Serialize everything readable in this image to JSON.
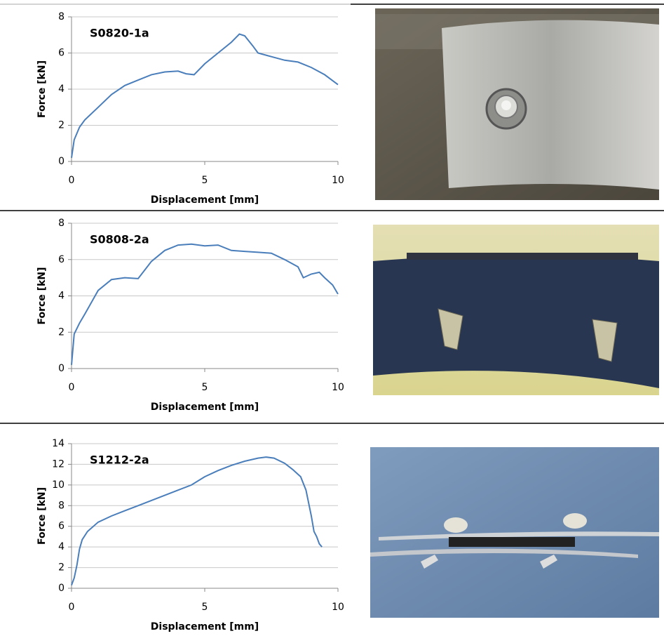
{
  "chart_data": [
    {
      "type": "line",
      "title": "S0820-1a",
      "x_label": "Displacement [mm]",
      "y_label": "Force [kN]",
      "x": [
        0,
        0.1,
        0.3,
        0.5,
        1,
        1.5,
        2,
        2.5,
        3,
        3.5,
        4,
        4.3,
        4.6,
        5,
        5.5,
        6,
        6.3,
        6.5,
        6.8,
        7,
        7.5,
        8,
        8.5,
        9,
        9.5,
        10
      ],
      "values": [
        0.2,
        1.2,
        1.9,
        2.3,
        3.0,
        3.7,
        4.2,
        4.5,
        4.8,
        4.95,
        5.0,
        4.85,
        4.8,
        5.4,
        6.0,
        6.6,
        7.05,
        6.95,
        6.4,
        6.0,
        5.8,
        5.6,
        5.5,
        5.2,
        4.8,
        4.25
      ],
      "color": "#4a7ebb",
      "xlim": [
        0,
        10
      ],
      "ylim": [
        0,
        8
      ],
      "xticks": [
        0,
        5,
        10
      ],
      "yticks": [
        0,
        2,
        4,
        6,
        8
      ],
      "grid": true
    },
    {
      "type": "line",
      "title": "S0808-2a",
      "x_label": "Displacement [mm]",
      "y_label": "Force [kN]",
      "x": [
        0,
        0.1,
        0.3,
        0.5,
        1,
        1.5,
        2,
        2.5,
        3,
        3.5,
        4,
        4.5,
        5,
        5.5,
        6,
        6.5,
        7,
        7.5,
        8,
        8.5,
        8.7,
        9,
        9.3,
        9.5,
        9.8,
        10
      ],
      "values": [
        0.2,
        1.9,
        2.5,
        3.0,
        4.3,
        4.9,
        5.0,
        4.95,
        5.9,
        6.5,
        6.8,
        6.85,
        6.75,
        6.8,
        6.5,
        6.45,
        6.4,
        6.35,
        6.0,
        5.6,
        5.0,
        5.2,
        5.3,
        5.0,
        4.6,
        4.1
      ],
      "color": "#4a7ebb",
      "xlim": [
        0,
        10
      ],
      "ylim": [
        0,
        8
      ],
      "xticks": [
        0,
        5,
        10
      ],
      "yticks": [
        0,
        2,
        4,
        6,
        8
      ],
      "grid": true
    },
    {
      "type": "line",
      "title": "S1212-2a",
      "x_label": "Displacement [mm]",
      "y_label": "Force [kN]",
      "x": [
        0,
        0.1,
        0.2,
        0.3,
        0.4,
        0.6,
        1,
        1.5,
        2,
        2.5,
        3,
        3.5,
        4,
        4.5,
        5,
        5.5,
        6,
        6.5,
        7,
        7.3,
        7.6,
        8,
        8.3,
        8.6,
        8.8,
        9,
        9.1,
        9.2,
        9.3,
        9.4
      ],
      "values": [
        0.3,
        1.0,
        2.2,
        3.8,
        4.7,
        5.5,
        6.4,
        7.0,
        7.5,
        8.0,
        8.5,
        9.0,
        9.5,
        10.0,
        10.8,
        11.4,
        11.9,
        12.3,
        12.6,
        12.7,
        12.6,
        12.1,
        11.5,
        10.8,
        9.5,
        7,
        5.5,
        5.0,
        4.3,
        4.0
      ],
      "color": "#4a7ebb",
      "xlim": [
        0,
        10
      ],
      "ylim": [
        0,
        14
      ],
      "xticks": [
        0,
        5,
        10
      ],
      "yticks": [
        0,
        2,
        4,
        6,
        8,
        10,
        12,
        14
      ],
      "grid": true
    }
  ]
}
